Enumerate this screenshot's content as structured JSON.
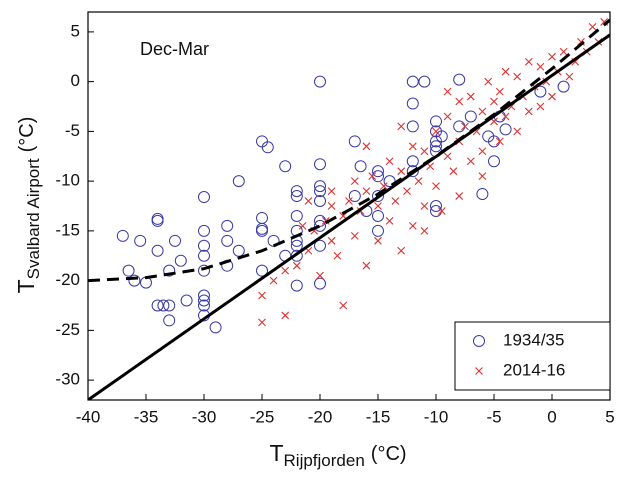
{
  "chart_data": {
    "type": "scatter",
    "annotation": "Dec-Mar",
    "x_label": {
      "main": "T",
      "sub": "Rijpfjorden",
      "unit": "(°C)"
    },
    "y_label": {
      "main": "T",
      "sub": "Svalbard Airport",
      "unit": "(°C)"
    },
    "xlim": [
      -40,
      5
    ],
    "ylim": [
      -32,
      7
    ],
    "xticks": [
      -40,
      -35,
      -30,
      -25,
      -20,
      -15,
      -10,
      -5,
      0,
      5
    ],
    "yticks": [
      -30,
      -25,
      -20,
      -15,
      -10,
      -5,
      0,
      5
    ],
    "legend": "lower right",
    "series": [
      {
        "name": "1934/35",
        "color": "#3a3aa8",
        "marker": "circle",
        "x": [
          -37,
          -36.5,
          -36,
          -35.5,
          -35,
          -34,
          -34,
          -34,
          -34,
          -33.5,
          -33,
          -33,
          -33,
          -32.5,
          -32,
          -31.5,
          -30,
          -30,
          -30,
          -30,
          -30,
          -30,
          -30,
          -30,
          -30,
          -29,
          -28,
          -28,
          -28,
          -27,
          -27,
          -25,
          -25,
          -25,
          -25,
          -25,
          -24.5,
          -24,
          -23,
          -23,
          -22,
          -22,
          -22,
          -22,
          -22,
          -22,
          -22,
          -22,
          -20,
          -20,
          -20,
          -20,
          -20,
          -20,
          -20,
          -20,
          -20,
          -17,
          -17,
          -16.5,
          -16,
          -15,
          -15,
          -15,
          -15,
          -15,
          -14,
          -12,
          -12,
          -12,
          -12,
          -12,
          -11,
          -10,
          -10,
          -10,
          -10,
          -10,
          -10,
          -10,
          -9.5,
          -8,
          -8,
          -7,
          -6,
          -5.5,
          -5,
          -5,
          -4.5,
          -4,
          -1,
          1
        ],
        "values": [
          -15.5,
          -19,
          -20,
          -16,
          -20.2,
          -14,
          -13.8,
          -17,
          -22.5,
          -22.5,
          -22.5,
          -24,
          -19,
          -16,
          -18,
          -22,
          -11.6,
          -15,
          -16.5,
          -17.5,
          -19,
          -21.5,
          -22,
          -22.5,
          -23.5,
          -24.7,
          -14.5,
          -16,
          -18.5,
          -10,
          -17,
          -6,
          -13.7,
          -14.8,
          -15,
          -19,
          -6.6,
          -16,
          -8.5,
          -17.5,
          -11,
          -11.5,
          -13.5,
          -15,
          -16,
          -16.5,
          -17.5,
          -20.5,
          0,
          -8.3,
          -10.5,
          -11,
          -12,
          -14,
          -14.5,
          -16.5,
          -20.3,
          -6,
          -11.5,
          -8.5,
          -13,
          -9,
          -9.5,
          -11.5,
          -13.5,
          -15,
          -10,
          0,
          -2.2,
          -4.5,
          -8,
          -9,
          0,
          -4,
          -5,
          -6,
          -6.5,
          -7,
          -12.5,
          -13,
          -5.5,
          0.2,
          -4.5,
          -3.5,
          -11.3,
          -5.5,
          -6,
          -8,
          -3.5,
          -4.8,
          -1,
          -0.5
        ]
      },
      {
        "name": "2014-16",
        "color": "#e03030",
        "marker": "x",
        "x": [
          -25,
          -25,
          -24,
          -23,
          -23,
          -22,
          -21.5,
          -21,
          -20.5,
          -20,
          -19.5,
          -19,
          -19,
          -18.5,
          -18,
          -18,
          -17.5,
          -17,
          -17,
          -16.5,
          -16,
          -16,
          -15.5,
          -15,
          -15,
          -14.5,
          -14,
          -14,
          -13.5,
          -13,
          -13,
          -12.5,
          -12,
          -12,
          -11.5,
          -11,
          -11,
          -10.5,
          -10,
          -10,
          -9.5,
          -9,
          -9,
          -8.5,
          -8,
          -8,
          -7.5,
          -7,
          -7,
          -6.5,
          -6,
          -6,
          -5.5,
          -5,
          -5,
          -4.5,
          -4.5,
          -4,
          -4,
          -3.5,
          -3,
          -3,
          -2.5,
          -2,
          -2,
          -1.5,
          -1,
          -1,
          -0.5,
          0,
          0,
          0.5,
          1,
          1.5,
          2,
          2.5,
          3,
          3.5,
          4,
          4.5,
          -16,
          -19,
          -13,
          -21,
          -8,
          -11,
          -6,
          -9
        ],
        "values": [
          -24.2,
          -21.5,
          -20,
          -23.5,
          -19,
          -18.5,
          -14.5,
          -17,
          -15,
          -19.5,
          -14,
          -16,
          -12.5,
          -17.5,
          -13.5,
          -22.5,
          -12,
          -15.5,
          -10,
          -13,
          -18.5,
          -11,
          -9.5,
          -12.5,
          -16,
          -10.5,
          -14,
          -8,
          -12,
          -17,
          -9,
          -11,
          -14.5,
          -6.5,
          -10,
          -12.5,
          -7,
          -8.5,
          -5,
          -10.5,
          -13,
          -7.5,
          -3.5,
          -9,
          -6,
          -2,
          -4.5,
          -8,
          -1.5,
          -5,
          -3,
          -7,
          0,
          -4,
          -2,
          -6,
          -1,
          -3.5,
          1,
          -2.5,
          -5,
          0.5,
          -1.5,
          -3,
          2,
          -0.5,
          -2.5,
          1.5,
          0,
          -1.5,
          2.5,
          1,
          3,
          0.5,
          2,
          4,
          3,
          5.5,
          4,
          6,
          -6.5,
          -11,
          -4.5,
          -12,
          -11.5,
          -15,
          -9.5,
          -1
        ]
      }
    ],
    "lines": [
      {
        "style": "solid",
        "color": "#000000",
        "x": [
          -40,
          5
        ],
        "y": [
          -32,
          4.7
        ]
      },
      {
        "style": "dashed",
        "color": "#000000",
        "x": [
          -40,
          -35,
          -30,
          -25,
          -20,
          -15,
          -10,
          -5,
          0,
          5
        ],
        "y": [
          -20,
          -19.7,
          -18.8,
          -17,
          -14.5,
          -11.3,
          -7.5,
          -3.3,
          1.3,
          6.2
        ]
      }
    ]
  }
}
